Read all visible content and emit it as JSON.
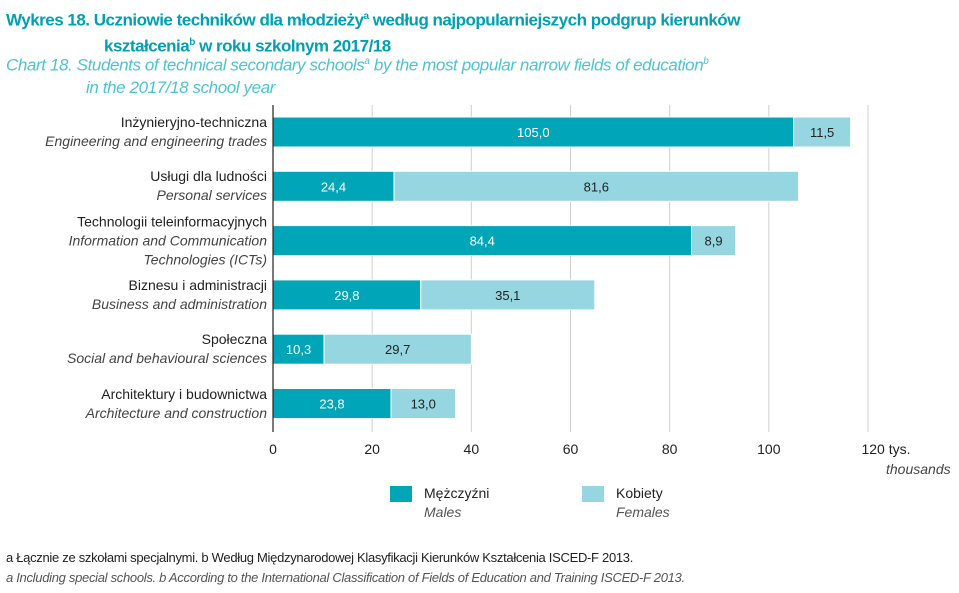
{
  "title": {
    "pl_line1": "Wykres 18.  Uczniowie  techników dla młodzieży",
    "pl_sup_a": "a",
    "pl_line1_rest": " według najpopularniejszych podgrup kierunków",
    "pl_line2": "kształcenia",
    "pl_sup_b": "b",
    "pl_line2_rest": " w roku szkolnym 2017/18",
    "en_line1": "Chart 18. Students of technical secondary schools",
    "en_sup_a": "a",
    "en_line1_rest": " by the most popular narrow fields of education",
    "en_sup_b": "b",
    "en_line2": "in the 2017/18 school year"
  },
  "chart_data": {
    "type": "bar",
    "orientation": "horizontal",
    "stacked": true,
    "categories": [
      {
        "pl": "Inżynieryjno-techniczna",
        "en": "Engineering and engineering trades"
      },
      {
        "pl": "Usługi dla ludności",
        "en": "Personal services"
      },
      {
        "pl": "Technologii teleinformacyjnych",
        "en": "Information and Communication Technologies (ICTs)"
      },
      {
        "pl": "Biznesu i administracji",
        "en": "Business and administration"
      },
      {
        "pl": "Społeczna",
        "en": "Social and behavioural sciences"
      },
      {
        "pl": "Architektury i budownictwa",
        "en": "Architecture and construction"
      }
    ],
    "series": [
      {
        "name": "Mężczyźni",
        "name_en": "Males",
        "color": "#00a5b8",
        "values": [
          105.0,
          24.4,
          84.4,
          29.8,
          10.3,
          23.8
        ],
        "labels": [
          "105,0",
          "24,4",
          "84,4",
          "29,8",
          "10,3",
          "23,8"
        ]
      },
      {
        "name": "Kobiety",
        "name_en": "Females",
        "color": "#96d6e0",
        "values": [
          11.5,
          81.6,
          8.9,
          35.1,
          29.7,
          13.0
        ],
        "labels": [
          "11,5",
          "81,6",
          "8,9",
          "35,1",
          "29,7",
          "13,0"
        ]
      }
    ],
    "xlim": [
      0,
      120
    ],
    "xticks": [
      "0",
      "20",
      "40",
      "60",
      "80",
      "100",
      "120 tys."
    ],
    "xlabel_en": "thousands",
    "grid": true,
    "legend_position": "bottom"
  },
  "footnotes": {
    "pl": "a Łącznie ze szkołami specjalnymi.   b Według Międzynarodowej Klasyfikacji Kierunków Kształcenia ISCED-F 2013.",
    "en": "a Including special schools.   b According to the International Classification of Fields of Education and Training ISCED-F 2013."
  }
}
